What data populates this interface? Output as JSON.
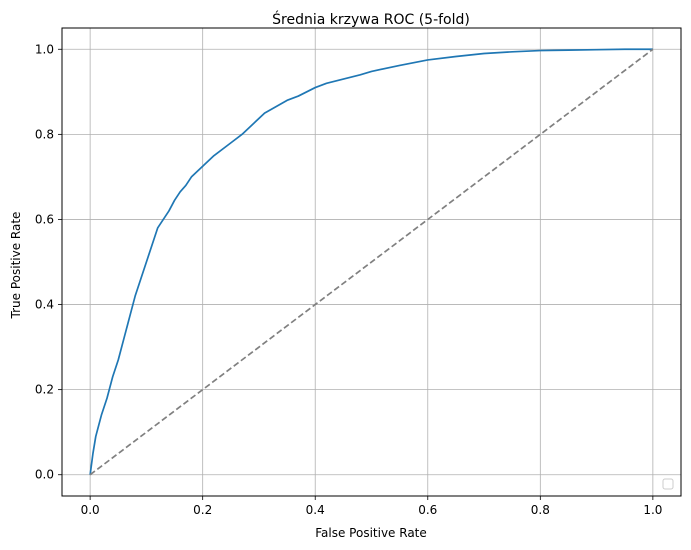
{
  "chart_data": {
    "type": "line",
    "title": "Średnia krzywa ROC (5-fold)",
    "xlabel": "False Positive Rate",
    "ylabel": "True Positive Rate",
    "xlim": [
      -0.05,
      1.05
    ],
    "ylim": [
      -0.05,
      1.05
    ],
    "xticks": [
      "0.0",
      "0.2",
      "0.4",
      "0.6",
      "0.8",
      "1.0"
    ],
    "yticks": [
      "0.0",
      "0.2",
      "0.4",
      "0.6",
      "0.8",
      "1.0"
    ],
    "grid": true,
    "legend": {
      "placement": "lower right",
      "entries": []
    },
    "series": [
      {
        "color": "#1f77b4",
        "style": "solid",
        "x": [
          0.0,
          0.005,
          0.01,
          0.02,
          0.03,
          0.04,
          0.05,
          0.06,
          0.07,
          0.08,
          0.09,
          0.1,
          0.11,
          0.12,
          0.13,
          0.14,
          0.15,
          0.16,
          0.17,
          0.18,
          0.2,
          0.22,
          0.25,
          0.27,
          0.29,
          0.31,
          0.33,
          0.35,
          0.37,
          0.4,
          0.42,
          0.45,
          0.48,
          0.5,
          0.55,
          0.6,
          0.65,
          0.7,
          0.75,
          0.8,
          0.85,
          0.9,
          0.95,
          1.0
        ],
        "y": [
          0.0,
          0.05,
          0.09,
          0.14,
          0.18,
          0.23,
          0.27,
          0.32,
          0.37,
          0.42,
          0.46,
          0.5,
          0.54,
          0.58,
          0.6,
          0.62,
          0.645,
          0.665,
          0.68,
          0.7,
          0.725,
          0.75,
          0.78,
          0.8,
          0.825,
          0.85,
          0.865,
          0.88,
          0.89,
          0.91,
          0.92,
          0.93,
          0.94,
          0.948,
          0.962,
          0.975,
          0.983,
          0.99,
          0.994,
          0.997,
          0.998,
          0.999,
          1.0,
          1.0
        ]
      },
      {
        "color": "#808080",
        "style": "dashed",
        "x": [
          0.0,
          1.0
        ],
        "y": [
          0.0,
          1.0
        ]
      }
    ]
  }
}
